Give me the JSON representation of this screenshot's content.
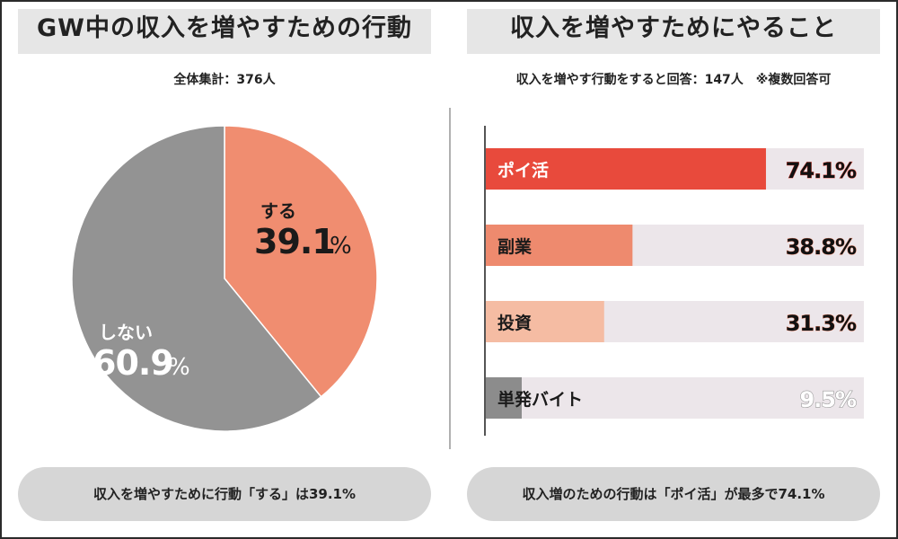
{
  "left_panel": {
    "title": "GW中の収入を増やすための行動",
    "subtitle": "全体集計：376人",
    "footer": "収入を増やすために行動「する」は39.1%"
  },
  "right_panel": {
    "title": "収入を増やすためにやること",
    "subtitle": "収入を増やす行動をすると回答：147人　※複数回答可",
    "footer": "収入増のための行動は「ポイ活」が最多で74.1%"
  },
  "chart_data": [
    {
      "type": "pie",
      "slices": [
        {
          "label": "する",
          "value": 39.1,
          "value_label": "39.1",
          "unit": "%",
          "color": "#f08d70"
        },
        {
          "label": "しない",
          "value": 60.9,
          "value_label": "60.9",
          "unit": "%",
          "color": "#939393"
        }
      ]
    },
    {
      "type": "bar",
      "orientation": "horizontal",
      "categories": [
        "ポイ活",
        "副業",
        "投資",
        "単発バイト"
      ],
      "values": [
        74.1,
        38.8,
        31.3,
        9.5
      ],
      "value_labels": [
        "74.1%",
        "38.8%",
        "31.3%",
        "9.5%"
      ],
      "colors": [
        "#e84a3c",
        "#ee8a6e",
        "#f5bca3",
        "#8c8c8c"
      ],
      "track_color": "#ece6ea",
      "xlim": [
        0,
        100
      ]
    }
  ]
}
